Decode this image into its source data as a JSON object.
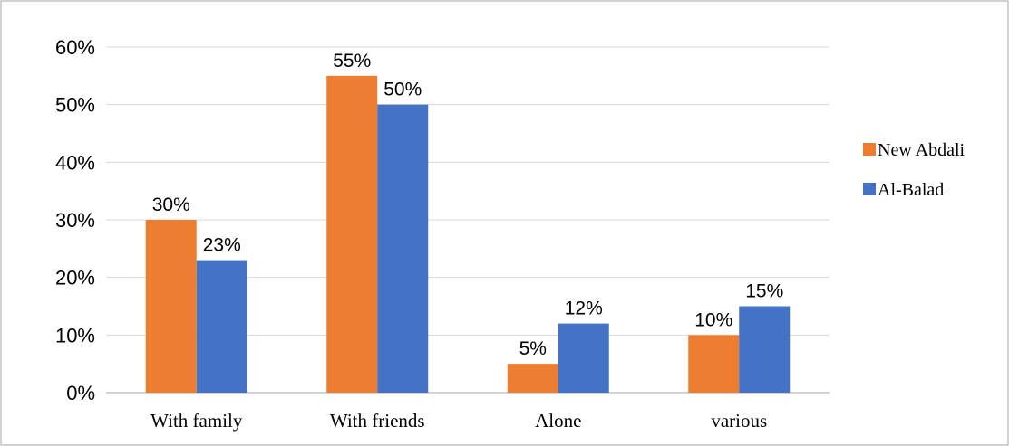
{
  "chart_data": {
    "type": "bar",
    "categories": [
      "With family",
      "With friends",
      "Alone",
      "various"
    ],
    "series": [
      {
        "name": "New Abdali",
        "values": [
          30,
          55,
          5,
          10
        ],
        "color": "#ED7D31"
      },
      {
        "name": "Al-Balad",
        "values": [
          23,
          50,
          12,
          15
        ],
        "color": "#4472C4"
      }
    ],
    "value_format": "percent",
    "ylim": [
      0,
      60
    ],
    "yticks": [
      0,
      10,
      20,
      30,
      40,
      50,
      60
    ],
    "grid": true,
    "legend_position": "right",
    "title": "",
    "xlabel": "",
    "ylabel": ""
  }
}
